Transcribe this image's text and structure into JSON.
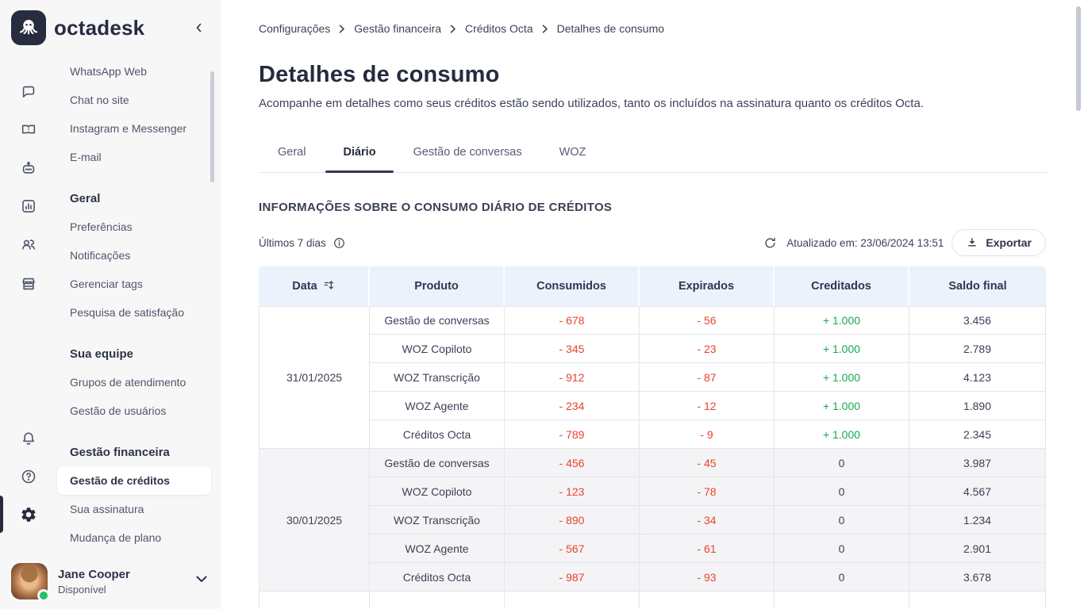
{
  "sidebar": {
    "brand": "octadesk",
    "menu": {
      "channels": [
        "WhatsApp Web",
        "Chat no site",
        "Instagram e Messenger",
        "E-mail"
      ],
      "sections": [
        {
          "heading": "Geral",
          "items": [
            "Preferências",
            "Notificações",
            "Gerenciar tags",
            "Pesquisa de satisfação"
          ]
        },
        {
          "heading": "Sua equipe",
          "items": [
            "Grupos de atendimento",
            "Gestão de usuários"
          ]
        },
        {
          "heading": "Gestão financeira",
          "items": [
            "Gestão de créditos",
            "Sua assinatura",
            "Mudança de plano"
          ],
          "active_item": "Gestão de créditos"
        }
      ]
    },
    "user": {
      "name": "Jane Cooper",
      "status": "Disponível"
    }
  },
  "breadcrumb": [
    "Configurações",
    "Gestão financeira",
    "Créditos Octa",
    "Detalhes de consumo"
  ],
  "page": {
    "title": "Detalhes de consumo",
    "subtitle": "Acompanhe em detalhes como seus créditos estão sendo utilizados, tanto os incluídos na assinatura quanto os créditos Octa."
  },
  "tabs": [
    {
      "label": "Geral",
      "active": false
    },
    {
      "label": "Diário",
      "active": true
    },
    {
      "label": "Gestão de conversas",
      "active": false
    },
    {
      "label": "WOZ",
      "active": false
    }
  ],
  "section": {
    "heading": "INFORMAÇÕES SOBRE O CONSUMO DIÁRIO DE CRÉDITOS",
    "period": "Últimos 7 dias",
    "updated": "Atualizado em: 23/06/2024 13:51",
    "export_label": "Exportar"
  },
  "table": {
    "headers": [
      "Data",
      "Produto",
      "Consumidos",
      "Expirados",
      "Creditados",
      "Saldo final"
    ],
    "groups": [
      {
        "date": "31/01/2025",
        "rows": [
          {
            "product": "Gestão de conversas",
            "consumed": "- 678",
            "expired": "- 56",
            "credited": "+ 1.000",
            "balance": "3.456"
          },
          {
            "product": "WOZ Copiloto",
            "consumed": "- 345",
            "expired": "- 23",
            "credited": "+ 1.000",
            "balance": "2.789"
          },
          {
            "product": "WOZ Transcrição",
            "consumed": "- 912",
            "expired": "- 87",
            "credited": "+ 1.000",
            "balance": "4.123"
          },
          {
            "product": "WOZ Agente",
            "consumed": "- 234",
            "expired": "- 12",
            "credited": "+ 1.000",
            "balance": "1.890"
          },
          {
            "product": "Créditos Octa",
            "consumed": "- 789",
            "expired": "- 9",
            "credited": "+ 1.000",
            "balance": "2.345"
          }
        ]
      },
      {
        "date": "30/01/2025",
        "rows": [
          {
            "product": "Gestão de conversas",
            "consumed": "- 456",
            "expired": "- 45",
            "credited": "0",
            "balance": "3.987"
          },
          {
            "product": "WOZ Copiloto",
            "consumed": "- 123",
            "expired": "- 78",
            "credited": "0",
            "balance": "4.567"
          },
          {
            "product": "WOZ Transcrição",
            "consumed": "- 890",
            "expired": "- 34",
            "credited": "0",
            "balance": "1.234"
          },
          {
            "product": "WOZ Agente",
            "consumed": "- 567",
            "expired": "- 61",
            "credited": "0",
            "balance": "2.901"
          },
          {
            "product": "Créditos Octa",
            "consumed": "- 987",
            "expired": "- 93",
            "credited": "0",
            "balance": "3.678"
          }
        ]
      }
    ]
  },
  "colors": {
    "negative": "#e8432d",
    "positive": "#17a94e",
    "accent_dark": "#272c3f",
    "header_bg": "#ebf2fc"
  }
}
